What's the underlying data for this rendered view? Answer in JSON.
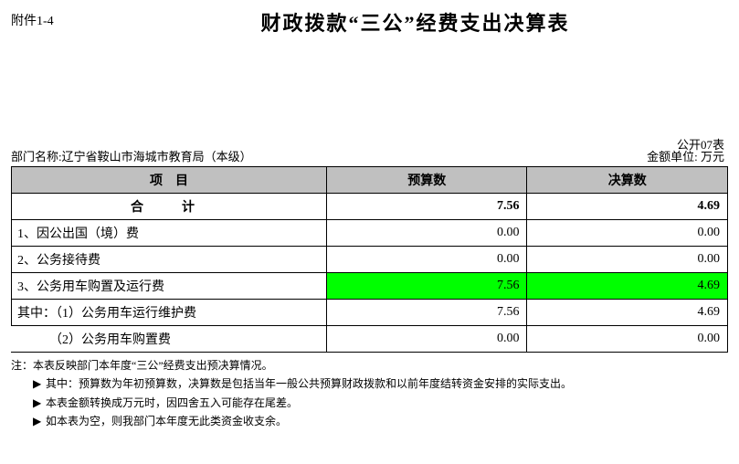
{
  "attachment_label": "附件1-4",
  "title": "财政拨款“三公”经费支出决算表",
  "form_no": "公开07表",
  "dept_label": "部门名称:",
  "dept_name": "辽宁省鞍山市海城市教育局（本级）",
  "unit_label": "金额单位: 万元",
  "columns": {
    "item": "项　目",
    "budget": "预算数",
    "final": "决算数"
  },
  "rows": [
    {
      "label": "合　计",
      "budget": "7.56",
      "final": "4.69",
      "label_center": true,
      "bold": true,
      "highlight": false,
      "no_left": false
    },
    {
      "label": "1、因公出国（境）费",
      "budget": "0.00",
      "final": "0.00",
      "label_center": false,
      "bold": false,
      "highlight": false,
      "no_left": false
    },
    {
      "label": "2、公务接待费",
      "budget": "0.00",
      "final": "0.00",
      "label_center": false,
      "bold": false,
      "highlight": false,
      "no_left": false
    },
    {
      "label": "3、公务用车购置及运行费",
      "budget": "7.56",
      "final": "4.69",
      "label_center": false,
      "bold": false,
      "highlight": true,
      "no_left": false
    },
    {
      "label": "其中：（1）公务用车运行维护费",
      "budget": "7.56",
      "final": "4.69",
      "label_center": false,
      "bold": false,
      "highlight": false,
      "no_left": false
    },
    {
      "label": "　　　（2）公务用车购置费",
      "budget": "0.00",
      "final": "0.00",
      "label_center": false,
      "bold": false,
      "highlight": false,
      "no_left": true
    }
  ],
  "notes_label": "注：",
  "notes": [
    "本表反映部门本年度“三公”经费支出预决算情况。",
    "其中：预算数为年初预算数，决算数是包括当年一般公共预算财政拨款和以前年度结转资金安排的实际支出。",
    "本表金额转换成万元时，因四舍五入可能存在尾差。",
    "如本表为空，则我部门本年度无此类资金收支余。"
  ],
  "arrow_glyph": "▶"
}
